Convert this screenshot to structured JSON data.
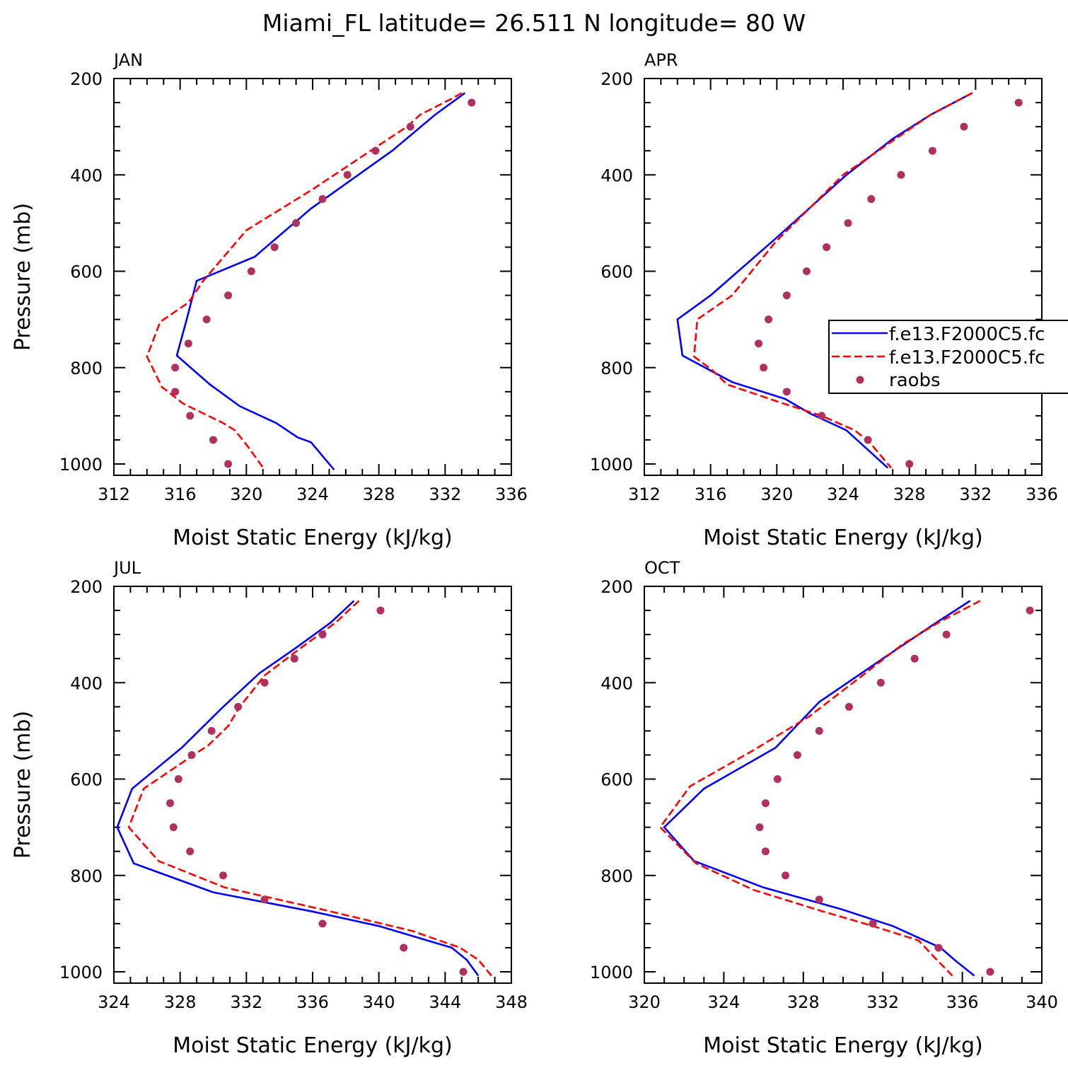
{
  "chart_data": {
    "type": "line",
    "title": "Miami_FL  latitude= 26.511 N longitude= 80 W",
    "xlabel": "Moist Static Energy (kJ/kg)",
    "ylabel": "Pressure (mb)",
    "yaxis_reversed": true,
    "ylim": [
      200,
      1020
    ],
    "yticks": [
      200,
      400,
      600,
      800,
      1000
    ],
    "series_names": [
      "f.e13.F2000C5.fc",
      "f.e13.F2000C5.fc",
      "raobs"
    ],
    "colors": {
      "model1": "#0000ff",
      "model2": "#ff0000",
      "raobs": "#b03060"
    },
    "legend_position": "right (APR panel)",
    "panels": [
      {
        "month": "JAN",
        "xlim": [
          312,
          336
        ],
        "xticks": [
          312,
          316,
          320,
          324,
          328,
          332,
          336
        ],
        "series": [
          {
            "name": "f.e13.F2000C5.fc",
            "style": "solid",
            "x": [
              333.2,
              331.4,
              328.8,
              323.9,
              320.5,
              317.0,
              316.4,
              315.8,
              317.8,
              319.6,
              321.8,
              323.1,
              323.9,
              325.3
            ],
            "y": [
              230,
              275,
              350,
              470,
              570,
              620,
              700,
              775,
              835,
              880,
              915,
              945,
              955,
              1012
            ]
          },
          {
            "name": "f.e13.F2000C5.fc",
            "style": "dashed",
            "x": [
              333.0,
              332.5,
              330.5,
              329.7,
              327.5,
              324.0,
              320.0,
              317.4,
              316.5,
              314.8,
              314.0,
              314.9,
              316.2,
              317.4,
              318.6,
              319.3,
              319.9,
              321.1
            ],
            "y": [
              230,
              240,
              275,
              300,
              350,
              430,
              515,
              620,
              665,
              705,
              777,
              840,
              875,
              895,
              915,
              930,
              955,
              1012
            ]
          },
          {
            "name": "raobs",
            "style": "markers",
            "x": [
              333.6,
              329.9,
              327.8,
              326.1,
              324.6,
              323.0,
              321.7,
              320.3,
              318.9,
              317.6,
              316.5,
              315.7,
              315.7,
              316.6,
              318.0,
              318.9
            ],
            "y": [
              250,
              300,
              350,
              400,
              450,
              500,
              550,
              600,
              650,
              700,
              750,
              800,
              850,
              900,
              950,
              1000
            ]
          }
        ]
      },
      {
        "month": "APR",
        "xlim": [
          312,
          336
        ],
        "xticks": [
          312,
          316,
          320,
          324,
          328,
          332,
          336
        ],
        "series": [
          {
            "name": "f.e13.F2000C5.fc",
            "style": "solid",
            "x": [
              331.8,
              329.3,
              327.0,
              324.2,
              320.0,
              316.0,
              314.0,
              314.3,
              317.3,
              320.5,
              322.0,
              324.2,
              326.7
            ],
            "y": [
              230,
              275,
              325,
              400,
              530,
              650,
              700,
              775,
              830,
              865,
              895,
              930,
              1008
            ]
          },
          {
            "name": "f.e13.F2000C5.fc",
            "style": "dashed",
            "x": [
              331.8,
              329.3,
              324.0,
              319.9,
              317.3,
              315.2,
              315.0,
              316.1,
              317.0,
              320.0,
              322.7,
              324.7,
              325.6,
              326.9
            ],
            "y": [
              230,
              275,
              400,
              540,
              650,
              700,
              777,
              805,
              835,
              870,
              900,
              930,
              955,
              1008
            ]
          },
          {
            "name": "raobs",
            "style": "markers",
            "x": [
              334.6,
              331.3,
              329.4,
              327.5,
              325.7,
              324.3,
              323.0,
              321.8,
              320.6,
              319.5,
              318.9,
              319.2,
              320.6,
              322.7,
              325.5,
              328.0
            ],
            "y": [
              250,
              300,
              350,
              400,
              450,
              500,
              550,
              600,
              650,
              700,
              750,
              800,
              850,
              900,
              950,
              1000
            ]
          }
        ]
      },
      {
        "month": "JUL",
        "xlim": [
          324,
          348
        ],
        "xticks": [
          324,
          328,
          332,
          336,
          340,
          344,
          348
        ],
        "series": [
          {
            "name": "f.e13.F2000C5.fc",
            "style": "solid",
            "x": [
              338.5,
              337.1,
              334.9,
              332.8,
              330.6,
              328.1,
              325.1,
              324.2,
              325.2,
              330.0,
              336.0,
              340.0,
              344.4,
              345.3,
              346.0
            ],
            "y": [
              230,
              275,
              330,
              380,
              450,
              535,
              620,
              700,
              775,
              835,
              875,
              905,
              950,
              975,
              1008
            ]
          },
          {
            "name": "f.e13.F2000C5.fc",
            "style": "dashed",
            "x": [
              338.8,
              337.4,
              335.2,
              333.1,
              331.6,
              330.9,
              329.7,
              328.6,
              325.8,
              324.9,
              326.7,
              330.7,
              336.5,
              342.0,
              344.9,
              346.0,
              346.8
            ],
            "y": [
              230,
              275,
              330,
              385,
              450,
              490,
              530,
              555,
              620,
              700,
              770,
              825,
              870,
              915,
              950,
              975,
              1008
            ]
          },
          {
            "name": "raobs",
            "style": "markers",
            "x": [
              340.1,
              336.6,
              334.9,
              333.1,
              331.5,
              329.9,
              328.7,
              327.9,
              327.4,
              327.6,
              328.6,
              330.6,
              333.1,
              336.6,
              341.5,
              345.1
            ],
            "y": [
              250,
              300,
              350,
              400,
              450,
              500,
              550,
              600,
              650,
              700,
              750,
              800,
              850,
              900,
              950,
              1000
            ]
          }
        ]
      },
      {
        "month": "OCT",
        "xlim": [
          320,
          340
        ],
        "xticks": [
          320,
          324,
          328,
          332,
          336,
          340
        ],
        "series": [
          {
            "name": "f.e13.F2000C5.fc",
            "style": "solid",
            "x": [
              336.4,
              334.7,
              332.0,
              328.8,
              326.6,
              323.0,
              321.0,
              322.5,
              326.0,
              329.9,
              332.5,
              334.1,
              334.9,
              335.6,
              336.6
            ],
            "y": [
              230,
              275,
              350,
              440,
              535,
              620,
              700,
              770,
              825,
              870,
              905,
              935,
              950,
              975,
              1008
            ]
          },
          {
            "name": "f.e13.F2000C5.fc",
            "style": "dashed",
            "x": [
              336.9,
              334.8,
              333.0,
              330.5,
              328.3,
              325.5,
              322.3,
              320.8,
              322.6,
              325.5,
              328.6,
              331.5,
              333.8,
              334.6,
              335.5
            ],
            "y": [
              230,
              275,
              320,
              400,
              470,
              540,
              615,
              700,
              775,
              830,
              870,
              905,
              935,
              970,
              1008
            ]
          },
          {
            "name": "raobs",
            "style": "markers",
            "x": [
              339.4,
              335.2,
              333.6,
              331.9,
              330.3,
              328.8,
              327.7,
              326.7,
              326.1,
              325.8,
              326.1,
              327.1,
              328.8,
              331.5,
              334.8,
              337.4
            ],
            "y": [
              250,
              300,
              350,
              400,
              450,
              500,
              550,
              600,
              650,
              700,
              750,
              800,
              850,
              900,
              950,
              1000
            ]
          }
        ]
      }
    ]
  }
}
